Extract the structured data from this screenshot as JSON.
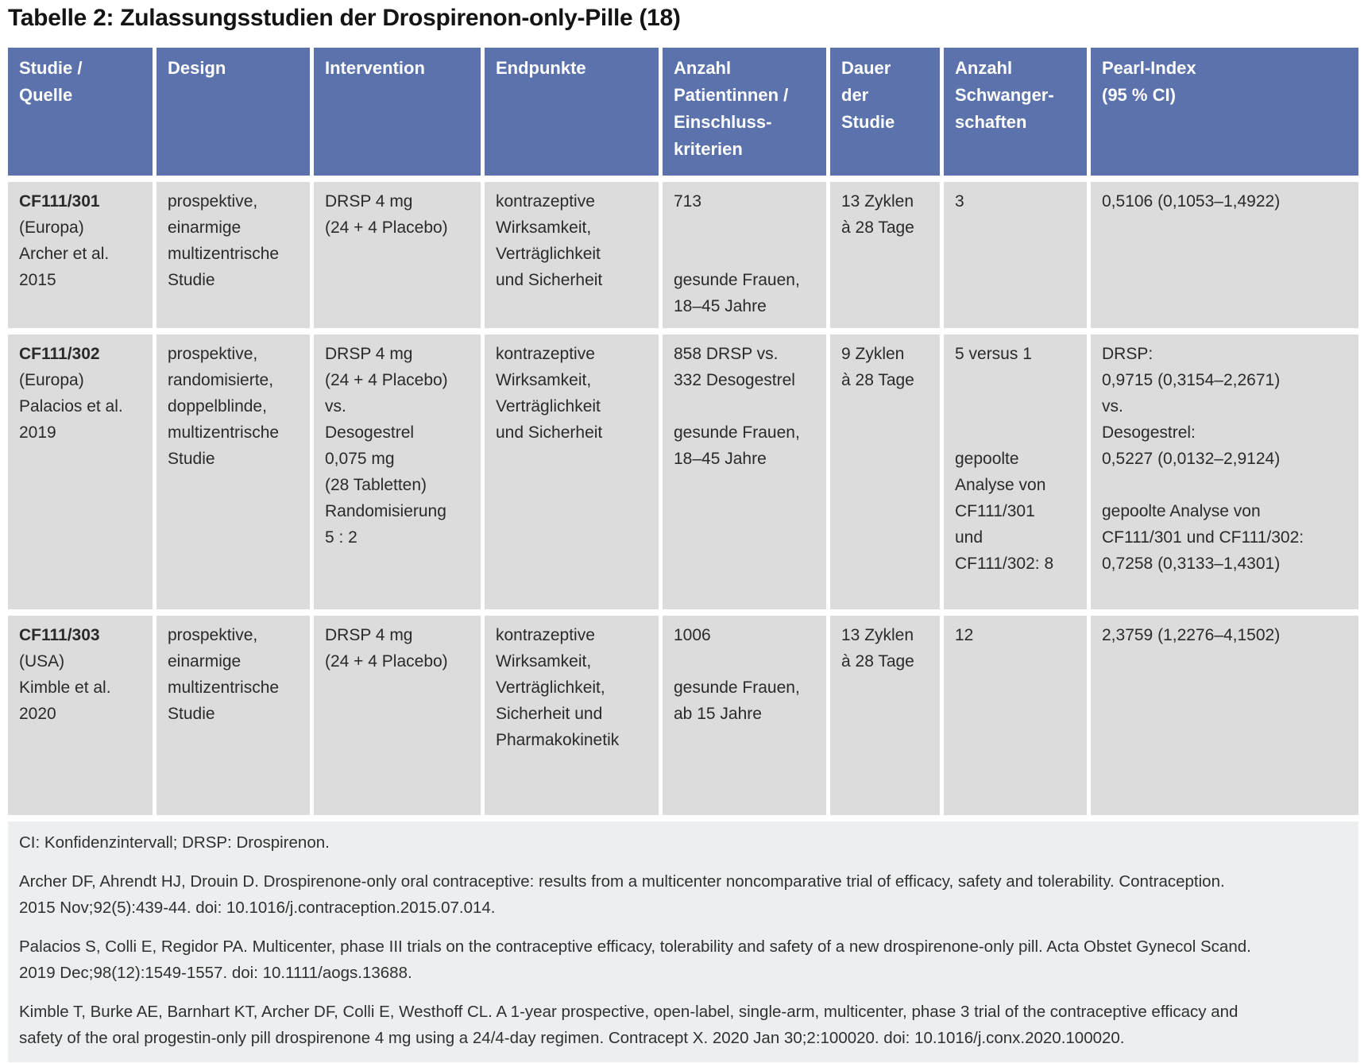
{
  "title": "Tabelle 2: Zulassungsstudien der Drospirenon-only-Pille (18)",
  "colors": {
    "header_bg": "#5b72ac",
    "row_bg": "#dcdcdc",
    "footnote_bg": "#eceef0",
    "header_text": "#ffffff",
    "body_text": "#2a2a2a",
    "title_text": "#141414"
  },
  "table": {
    "columns": [
      [
        "Studie /",
        "Quelle"
      ],
      [
        "Design"
      ],
      [
        "Intervention"
      ],
      [
        "Endpunkte"
      ],
      [
        "Anzahl",
        "Patientinnen /",
        "Einschluss-",
        "kriterien"
      ],
      [
        "Dauer",
        "der",
        "Studie"
      ],
      [
        "Anzahl",
        "Schwanger-",
        "schaften"
      ],
      [
        "Pearl-Index",
        "(95 % CI)"
      ]
    ],
    "rows": [
      {
        "study_id": "CF111/301",
        "study_lines": [
          "(Europa)",
          "Archer et al.",
          "2015"
        ],
        "design": [
          "prospektive,",
          "einarmige",
          "multizentrische",
          "Studie"
        ],
        "intervention": [
          "DRSP 4 mg",
          "(24 + 4 Placebo)"
        ],
        "endpoints": [
          "kontrazeptive",
          "Wirksamkeit,",
          "Verträglichkeit",
          "und Sicherheit"
        ],
        "patients": [
          "713",
          "",
          "",
          "gesunde Frauen,",
          "18–45 Jahre"
        ],
        "duration": [
          "13 Zyklen",
          "à 28 Tage"
        ],
        "pregnancies": [
          "3"
        ],
        "pearl_index": [
          "0,5106 (0,1053–1,4922)"
        ]
      },
      {
        "study_id": "CF111/302",
        "study_lines": [
          "(Europa)",
          "Palacios et al.",
          "2019"
        ],
        "design": [
          "prospektive,",
          "randomisierte,",
          "doppelblinde,",
          "multizentrische",
          "Studie"
        ],
        "intervention": [
          "DRSP 4 mg",
          "(24 + 4 Placebo)",
          "vs.",
          "Desogestrel",
          "0,075 mg",
          "(28 Tabletten)",
          "Randomisierung",
          "5 : 2"
        ],
        "endpoints": [
          "kontrazeptive",
          "Wirksamkeit,",
          "Verträglichkeit",
          "und Sicherheit"
        ],
        "patients": [
          "858 DRSP vs.",
          "332 Desogestrel",
          "",
          "gesunde Frauen,",
          "18–45 Jahre"
        ],
        "duration": [
          "9 Zyklen",
          "à 28 Tage"
        ],
        "pregnancies": [
          "5 versus 1",
          "",
          "",
          "",
          "gepoolte",
          "Analyse von",
          "CF111/301",
          "und",
          "CF111/302: 8"
        ],
        "pearl_index": [
          "DRSP:",
          "0,9715 (0,3154–2,2671)",
          "vs.",
          "Desogestrel:",
          "0,5227 (0,0132–2,9124)",
          "",
          "gepoolte Analyse von",
          "CF111/301 und CF111/302:",
          "0,7258 (0,3133–1,4301)"
        ]
      },
      {
        "study_id": "CF111/303",
        "study_lines": [
          "(USA)",
          "Kimble et al.",
          "2020"
        ],
        "design": [
          "prospektive,",
          "einarmige",
          "multizentrische",
          "Studie"
        ],
        "intervention": [
          "DRSP 4 mg",
          "(24 + 4 Placebo)"
        ],
        "endpoints": [
          "kontrazeptive",
          "Wirksamkeit,",
          "Verträglichkeit,",
          "Sicherheit und",
          "Pharmakokinetik"
        ],
        "patients": [
          "1006",
          "",
          "gesunde Frauen,",
          "ab 15 Jahre"
        ],
        "duration": [
          "13 Zyklen",
          "à 28 Tage"
        ],
        "pregnancies": [
          "12"
        ],
        "pearl_index": [
          "2,3759 (1,2276–4,1502)"
        ]
      }
    ]
  },
  "footnotes": {
    "abbreviations": "CI: Konfidenzintervall; DRSP: Drospirenon.",
    "references": [
      [
        "Archer DF, Ahrendt HJ, Drouin D. Drospirenone-only oral contraceptive: results from a multicenter noncomparative trial of efficacy, safety and tolerability. Contraception.",
        "2015 Nov;92(5):439-44. doi: 10.1016/j.contraception.2015.07.014."
      ],
      [
        "Palacios S, Colli E, Regidor PA. Multicenter, phase III trials on the contraceptive efficacy, tolerability and safety of a new drospirenone-only pill. Acta Obstet Gynecol Scand.",
        "2019 Dec;98(12):1549-1557. doi: 10.1111/aogs.13688."
      ],
      [
        "Kimble T, Burke AE, Barnhart KT, Archer DF, Colli E, Westhoff CL. A 1-year prospective, open-label, single-arm, multicenter, phase 3 trial of the contraceptive efficacy and",
        "safety of the oral progestin-only pill drospirenone 4 mg using a 24/4-day regimen. Contracept X. 2020 Jan 30;2:100020. doi: 10.1016/j.conx.2020.100020."
      ]
    ]
  }
}
